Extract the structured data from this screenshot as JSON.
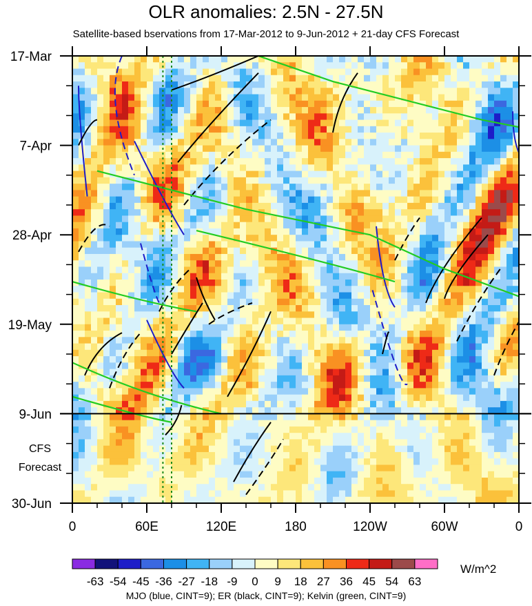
{
  "header": {
    "title": "OLR anomalies: 2.5N - 27.5N",
    "subtitle": "Satellite-based bservations from 17-Mar-2012 to 9-Jun-2012 + 21-day CFS Forecast"
  },
  "forecast_label": [
    "CFS",
    "Forecast"
  ],
  "colorbar": {
    "unit": "W/m^2",
    "levels": [
      "-63",
      "-54",
      "-45",
      "-36",
      "-27",
      "-18",
      "-9",
      "0",
      "9",
      "18",
      "27",
      "36",
      "45",
      "54",
      "63"
    ],
    "colors": [
      "#8a2be2",
      "#12127a",
      "#1d1dc8",
      "#3b68e0",
      "#1c8fe6",
      "#40b4f5",
      "#9ad0fa",
      "#d8f2fb",
      "#fefcc4",
      "#fde77a",
      "#fbc13b",
      "#f99122",
      "#ee2a17",
      "#c41b16",
      "#9c4a4a",
      "#ff6ec7"
    ]
  },
  "footer": "MJO (blue, CINT=9); ER (black, CINT=9); Kelvin (green, CINT=9)",
  "chart_data": {
    "type": "heatmap",
    "title": "OLR anomalies: 2.5N - 27.5N",
    "subtitle": "Satellite-based bservations from 17-Mar-2012 to 9-Jun-2012 + 21-day CFS Forecast",
    "x_ticks": [
      {
        "lon": 0,
        "label": "0"
      },
      {
        "lon": 60,
        "label": "60E"
      },
      {
        "lon": 120,
        "label": "120E"
      },
      {
        "lon": 180,
        "label": "180"
      },
      {
        "lon": 240,
        "label": "120W"
      },
      {
        "lon": 300,
        "label": "60W"
      },
      {
        "lon": 360,
        "label": "0"
      }
    ],
    "y_ticks": [
      {
        "day": 0,
        "label": "17-Mar"
      },
      {
        "day": 21,
        "label": "7-Apr"
      },
      {
        "day": 42,
        "label": "28-Apr"
      },
      {
        "day": 63,
        "label": "19-May"
      },
      {
        "day": 84,
        "label": "9-Jun"
      },
      {
        "day": 105,
        "label": "30-Jun"
      }
    ],
    "xlim": [
      0,
      360
    ],
    "ylim": [
      0,
      105
    ],
    "forecast_start_day": 84,
    "reference_lons": [
      73,
      80
    ],
    "legend_placement": "bottom",
    "series": [
      {
        "name": "MJO",
        "color": "#1d1dc8",
        "solid": [
          [
            [
              5,
              7
            ],
            [
              5,
              14
            ],
            [
              12,
              33
            ]
          ],
          [
            [
              50,
              20
            ],
            [
              75,
              35
            ],
            [
              90,
              42
            ]
          ],
          [
            [
              60,
              62
            ],
            [
              80,
              75
            ],
            [
              90,
              78
            ]
          ],
          [
            [
              245,
              40
            ],
            [
              250,
              55
            ],
            [
              260,
              59
            ]
          ],
          [
            [
              355,
              13
            ],
            [
              355,
              22
            ],
            [
              365,
              25
            ]
          ]
        ],
        "dashed": [
          [
            [
              40,
              0
            ],
            [
              25,
              10
            ],
            [
              50,
              28
            ]
          ],
          [
            [
              55,
              44
            ],
            [
              65,
              55
            ],
            [
              70,
              58
            ]
          ],
          [
            [
              242,
              55
            ],
            [
              265,
              79
            ],
            [
              270,
              77
            ]
          ]
        ]
      },
      {
        "name": "ER",
        "color": "#000000",
        "solid": [
          [
            [
              80,
              8
            ],
            [
              110,
              5
            ],
            [
              150,
              0
            ]
          ],
          [
            [
              85,
              25
            ],
            [
              110,
              16
            ],
            [
              150,
              4
            ]
          ],
          [
            [
              210,
              18
            ],
            [
              215,
              10
            ],
            [
              230,
              4
            ]
          ],
          [
            [
              5,
              21
            ],
            [
              15,
              15
            ],
            [
              20,
              15
            ]
          ],
          [
            [
              100,
              52
            ],
            [
              105,
              57
            ],
            [
              115,
              62
            ]
          ],
          [
            [
              80,
              70
            ],
            [
              90,
              65
            ],
            [
              105,
              58
            ]
          ],
          [
            [
              125,
              80
            ],
            [
              145,
              70
            ],
            [
              160,
              60
            ]
          ],
          [
            [
              250,
              70
            ],
            [
              255,
              64
            ],
            [
              255,
              65
            ]
          ],
          [
            [
              300,
              57
            ],
            [
              305,
              52
            ],
            [
              335,
              42
            ]
          ],
          [
            [
              285,
              58
            ],
            [
              295,
              50
            ],
            [
              330,
              38
            ]
          ],
          [
            [
              10,
              75
            ],
            [
              20,
              68
            ],
            [
              40,
              65
            ]
          ],
          [
            [
              75,
              89
            ],
            [
              85,
              86
            ],
            [
              88,
              82
            ]
          ],
          [
            [
              130,
              100
            ],
            [
              145,
              92
            ],
            [
              160,
              86
            ]
          ]
        ],
        "dashed": [
          [
            [
              90,
              35
            ],
            [
              120,
              24
            ],
            [
              160,
              15
            ]
          ],
          [
            [
              5,
              46
            ],
            [
              20,
              38
            ],
            [
              30,
              40
            ]
          ],
          [
            [
              70,
              60
            ],
            [
              80,
              54
            ],
            [
              95,
              50
            ]
          ],
          [
            [
              110,
              63
            ],
            [
              125,
              60
            ],
            [
              145,
              58
            ]
          ],
          [
            [
              260,
              48
            ],
            [
              270,
              42
            ],
            [
              280,
              38
            ]
          ],
          [
            [
              310,
              67
            ],
            [
              325,
              58
            ],
            [
              345,
              50
            ]
          ],
          [
            [
              340,
              75
            ],
            [
              350,
              67
            ],
            [
              365,
              60
            ]
          ],
          [
            [
              30,
              78
            ],
            [
              40,
              70
            ],
            [
              55,
              65
            ]
          ],
          [
            [
              140,
              103
            ],
            [
              160,
              95
            ],
            [
              170,
              90
            ]
          ]
        ]
      },
      {
        "name": "Kelvin",
        "color": "#22cc22",
        "solid": [
          [
            [
              150,
              0
            ],
            [
              210,
              6
            ],
            [
              330,
              15
            ],
            [
              365,
              17
            ]
          ],
          [
            [
              20,
              27
            ],
            [
              140,
              36
            ],
            [
              240,
              42
            ],
            [
              300,
              50
            ],
            [
              365,
              57
            ]
          ],
          [
            [
              100,
              41
            ],
            [
              200,
              48
            ],
            [
              260,
              53
            ]
          ],
          [
            [
              0,
              53
            ],
            [
              60,
              58
            ],
            [
              100,
              60
            ]
          ],
          [
            [
              0,
              72
            ],
            [
              60,
              80
            ],
            [
              120,
              84
            ]
          ],
          [
            [
              0,
              80
            ],
            [
              60,
              85
            ],
            [
              80,
              86
            ]
          ]
        ],
        "dashed": []
      }
    ]
  }
}
